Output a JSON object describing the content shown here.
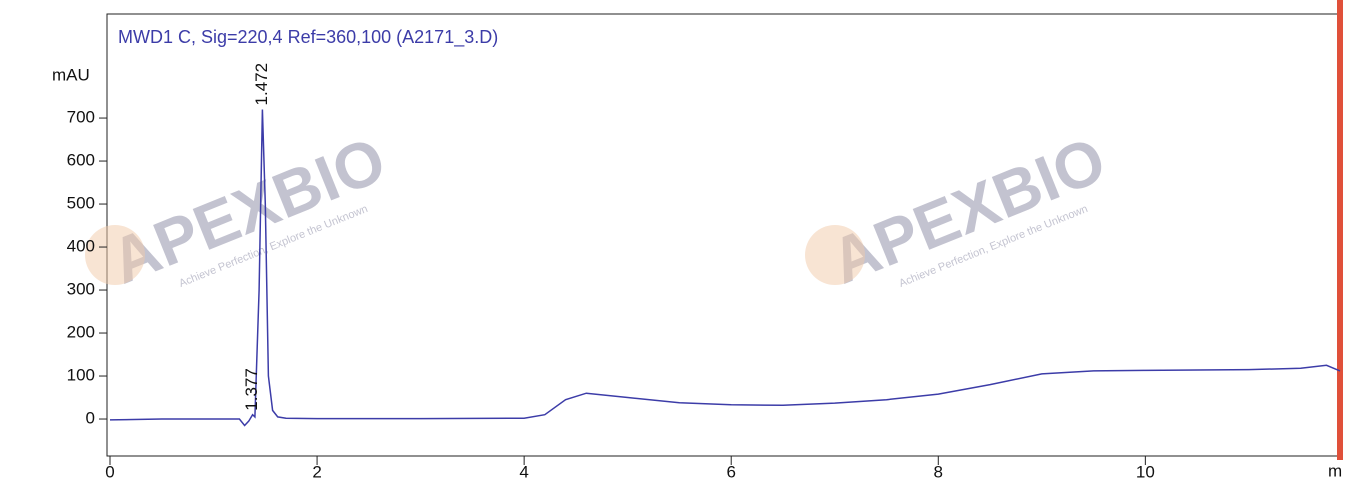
{
  "chart_data": {
    "type": "line",
    "title": "MWD1 C, Sig=220,4 Ref=360,100 (A2171_3.D)",
    "y_label": "mAU",
    "x_label": "m",
    "x": [
      0,
      0.5,
      1.0,
      1.25,
      1.3,
      1.34,
      1.377,
      1.4,
      1.44,
      1.472,
      1.5,
      1.53,
      1.57,
      1.62,
      1.7,
      2,
      3,
      4,
      4.2,
      4.4,
      4.6,
      5,
      5.5,
      6,
      6.5,
      7,
      7.5,
      8,
      8.5,
      9,
      9.5,
      10,
      10.5,
      11,
      11.5,
      11.75,
      11.88
    ],
    "series": [
      {
        "name": "MWD1 C",
        "color": "#3c3ca8",
        "values": [
          -2,
          0,
          0,
          0,
          -15,
          -5,
          10,
          5,
          300,
          720,
          500,
          100,
          20,
          5,
          2,
          1,
          1,
          2,
          10,
          45,
          60,
          50,
          38,
          33,
          32,
          37,
          45,
          58,
          80,
          105,
          112,
          113,
          114,
          115,
          118,
          125,
          112
        ]
      }
    ],
    "annotations": [
      {
        "label": "1.472",
        "x": 1.472,
        "y": 720
      },
      {
        "label": "1.377",
        "x": 1.377,
        "y": 10
      }
    ],
    "watermarks": [
      {
        "text": "APEXBIO",
        "tagline": "Achieve Perfection, Explore the Unknown"
      },
      {
        "text": "APEXBIO",
        "tagline": "Achieve Perfection, Explore the Unknown"
      }
    ],
    "xlim": [
      0,
      11.88
    ],
    "ylim": [
      -86,
      942
    ],
    "xticks": [
      0,
      2,
      4,
      6,
      8,
      10
    ],
    "yticks": [
      0,
      100,
      200,
      300,
      400,
      500,
      600,
      700
    ]
  }
}
